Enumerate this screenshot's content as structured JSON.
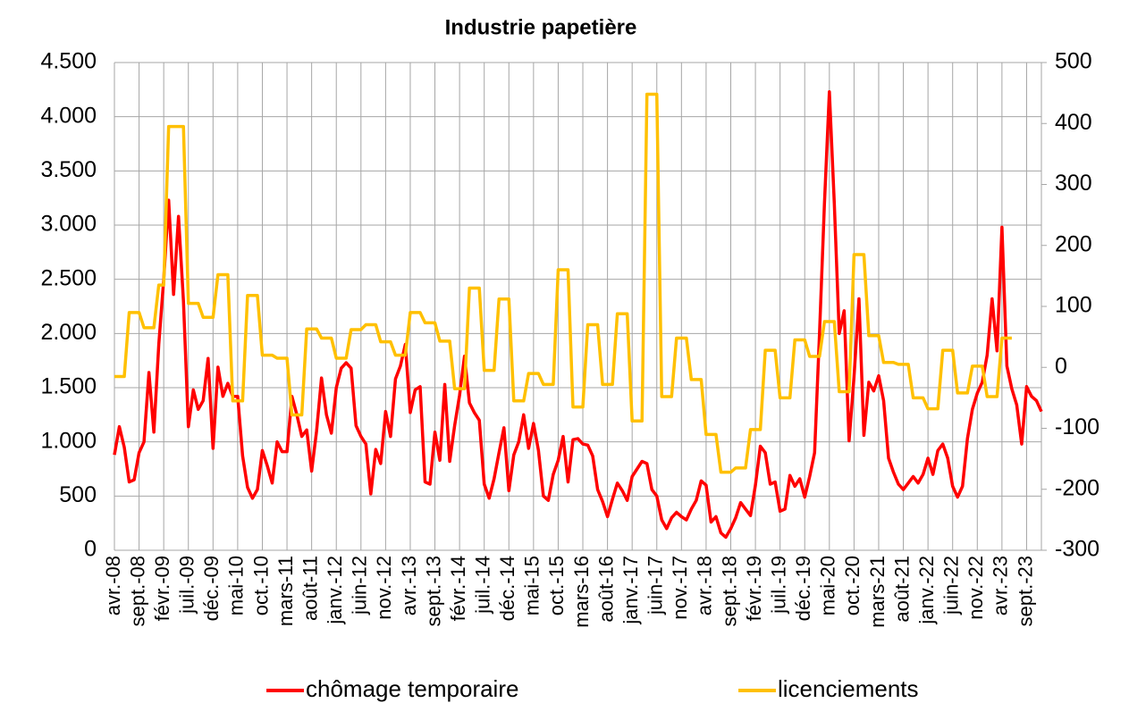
{
  "chart_data": {
    "type": "line",
    "title": "Industrie papetière",
    "categories": [
      "avr.-08",
      null,
      null,
      null,
      null,
      "sept.-08",
      null,
      null,
      null,
      null,
      "févr.-09",
      null,
      null,
      null,
      null,
      "juil.-09",
      null,
      null,
      null,
      null,
      "déc.-09",
      null,
      null,
      null,
      null,
      "mai-10",
      null,
      null,
      null,
      null,
      "oct.-10",
      null,
      null,
      null,
      null,
      "mars-11",
      null,
      null,
      null,
      null,
      "août-11",
      null,
      null,
      null,
      null,
      "janv.-12",
      null,
      null,
      null,
      null,
      "juin-12",
      null,
      null,
      null,
      null,
      "nov.-12",
      null,
      null,
      null,
      null,
      "avr.-13",
      null,
      null,
      null,
      null,
      "sept.-13",
      null,
      null,
      null,
      null,
      "févr.-14",
      null,
      null,
      null,
      null,
      "juil.-14",
      null,
      null,
      null,
      null,
      "déc.-14",
      null,
      null,
      null,
      null,
      "mai-15",
      null,
      null,
      null,
      null,
      "oct.-15",
      null,
      null,
      null,
      null,
      "mars-16",
      null,
      null,
      null,
      null,
      "août-16",
      null,
      null,
      null,
      null,
      "janv.-17",
      null,
      null,
      null,
      null,
      "juin-17",
      null,
      null,
      null,
      null,
      "nov.-17",
      null,
      null,
      null,
      null,
      "avr.-18",
      null,
      null,
      null,
      null,
      "sept.-18",
      null,
      null,
      null,
      null,
      "févr.-19",
      null,
      null,
      null,
      null,
      "juil.-19",
      null,
      null,
      null,
      null,
      "déc.-19",
      null,
      null,
      null,
      null,
      "mai-20",
      null,
      null,
      null,
      null,
      "oct.-20",
      null,
      null,
      null,
      null,
      "mars-21",
      null,
      null,
      null,
      null,
      "août-21",
      null,
      null,
      null,
      null,
      "janv.-22",
      null,
      null,
      null,
      null,
      "juin-22",
      null,
      null,
      null,
      null,
      "nov.-22",
      null,
      null,
      null,
      null,
      "avr.-23",
      null,
      null,
      null,
      null,
      "sept.-23",
      null,
      null,
      null
    ],
    "series": [
      {
        "name": "chômage temporaire",
        "color": "#ff0000",
        "values": [
          880,
          1140,
          950,
          630,
          650,
          900,
          1000,
          1640,
          1090,
          1900,
          2500,
          3230,
          2360,
          3080,
          2300,
          1140,
          1480,
          1300,
          1380,
          1770,
          940,
          1690,
          1420,
          1540,
          1420,
          1420,
          870,
          580,
          480,
          560,
          920,
          780,
          620,
          1000,
          910,
          910,
          1420,
          1250,
          1050,
          1110,
          730,
          1100,
          1590,
          1250,
          1080,
          1500,
          1680,
          1730,
          1680,
          1150,
          1050,
          980,
          520,
          930,
          800,
          1280,
          1050,
          1580,
          1700,
          1900,
          1270,
          1480,
          1510,
          630,
          610,
          1090,
          830,
          1530,
          820,
          1150,
          1430,
          1790,
          1360,
          1270,
          1200,
          610,
          480,
          660,
          900,
          1130,
          550,
          880,
          1000,
          1250,
          940,
          1170,
          920,
          500,
          460,
          700,
          830,
          1050,
          630,
          1020,
          1030,
          980,
          970,
          870,
          560,
          450,
          310,
          470,
          620,
          550,
          460,
          680,
          750,
          820,
          800,
          560,
          500,
          280,
          200,
          300,
          350,
          310,
          280,
          380,
          460,
          640,
          600,
          260,
          310,
          160,
          120,
          200,
          300,
          440,
          380,
          320,
          600,
          960,
          900,
          610,
          630,
          360,
          380,
          690,
          590,
          660,
          490,
          680,
          900,
          2000,
          3200,
          4230,
          3200,
          2000,
          2210,
          1010,
          1600,
          2320,
          1060,
          1550,
          1470,
          1610,
          1380,
          850,
          720,
          610,
          560,
          620,
          680,
          620,
          700,
          850,
          700,
          920,
          980,
          850,
          590,
          490,
          590,
          1030,
          1300,
          1450,
          1550,
          1800,
          2320,
          1840,
          2980,
          1700,
          1490,
          1340,
          980,
          1510,
          1420,
          1380,
          1280
        ]
      },
      {
        "name": "licenciements",
        "color": "#ffc000",
        "axis": "y2",
        "values": [
          -15,
          -15,
          -15,
          90,
          90,
          90,
          65,
          65,
          65,
          135,
          135,
          395,
          395,
          395,
          395,
          105,
          105,
          105,
          82,
          82,
          82,
          152,
          152,
          152,
          -55,
          -55,
          -55,
          118,
          118,
          118,
          20,
          20,
          20,
          15,
          15,
          15,
          -78,
          -78,
          -78,
          63,
          63,
          63,
          48,
          48,
          48,
          15,
          15,
          15,
          62,
          62,
          62,
          70,
          70,
          70,
          42,
          42,
          42,
          20,
          20,
          20,
          90,
          90,
          90,
          73,
          73,
          73,
          43,
          43,
          43,
          -35,
          -35,
          -35,
          130,
          130,
          130,
          -5,
          -5,
          -5,
          112,
          112,
          112,
          -55,
          -55,
          -55,
          -10,
          -10,
          -10,
          -28,
          -28,
          -28,
          160,
          160,
          160,
          -65,
          -65,
          -65,
          70,
          70,
          70,
          -28,
          -28,
          -28,
          88,
          88,
          88,
          -88,
          -88,
          -88,
          448,
          448,
          448,
          -48,
          -48,
          -48,
          48,
          48,
          48,
          -20,
          -20,
          -20,
          -110,
          -110,
          -110,
          -172,
          -172,
          -172,
          -165,
          -165,
          -165,
          -102,
          -102,
          -102,
          28,
          28,
          28,
          -50,
          -50,
          -50,
          45,
          45,
          45,
          18,
          18,
          18,
          75,
          75,
          75,
          -40,
          -40,
          -40,
          185,
          185,
          185,
          52,
          52,
          52,
          8,
          8,
          8,
          5,
          5,
          5,
          -50,
          -50,
          -50,
          -68,
          -68,
          -68,
          28,
          28,
          28,
          -42,
          -42,
          -42,
          2,
          2,
          2,
          -48,
          -48,
          -48,
          48,
          48,
          48,
          null,
          null,
          null,
          null,
          null,
          null
        ]
      }
    ],
    "ylim": [
      0,
      4500
    ],
    "yticks": [
      0,
      500,
      {
        "value": 1000,
        "label": "1.000"
      },
      {
        "value": 1500,
        "label": "1.500"
      },
      {
        "value": 2000,
        "label": "2.000"
      },
      {
        "value": 2500,
        "label": "2.500"
      },
      {
        "value": 3000,
        "label": "3.000"
      },
      {
        "value": 3500,
        "label": "3.500"
      },
      {
        "value": 4000,
        "label": "4.000"
      },
      {
        "value": 4500,
        "label": "4.500"
      }
    ],
    "y2lim": [
      -300,
      500
    ],
    "y2ticks": [
      -300,
      -200,
      -100,
      0,
      100,
      200,
      300,
      400,
      500
    ],
    "grid": true,
    "legend": "bottom"
  }
}
